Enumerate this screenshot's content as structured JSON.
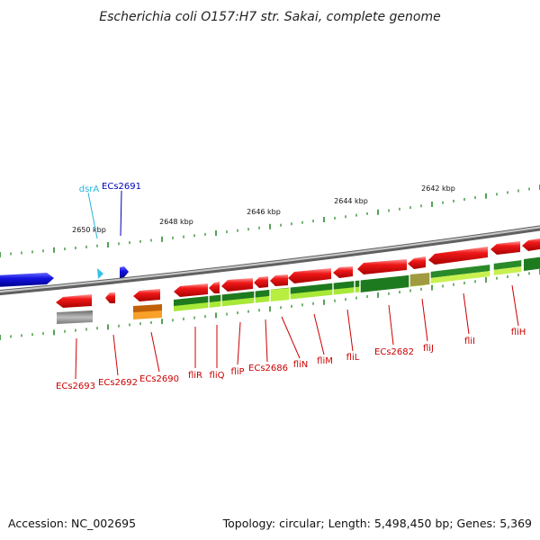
{
  "title": "Escherichia coli O157:H7 str. Sakai, complete genome",
  "accession": "Accession: NC_002695",
  "topology": "Topology: circular; Length: 5,498,450 bp; Genes: 5,369",
  "ticks": [
    "2650 kbp",
    "2648 kbp",
    "2646 kbp",
    "2644 kbp",
    "2642 kbp"
  ],
  "top_labels": [
    "dsrA",
    "ECs2691"
  ],
  "bottom_labels": [
    "ECs2693",
    "ECs2692",
    "ECs2690",
    "fliR",
    "fliQ",
    "fliP",
    "ECs2686",
    "fliN",
    "fliM",
    "fliL",
    "ECs2682",
    "fliJ",
    "fliI",
    "fliH"
  ],
  "colors": {
    "cds": "#e8101a",
    "forward": "#1212e0",
    "rna": "#33c0e8",
    "gene": "#2a8a2a",
    "gene_light": "#b8ee40",
    "pseudo": "#b0b0b0",
    "orange": "#f08810",
    "backbone": "#808080",
    "label_red": "#cc0000",
    "label_blue": "#0000bb",
    "label_cyan": "#28b4dc"
  }
}
